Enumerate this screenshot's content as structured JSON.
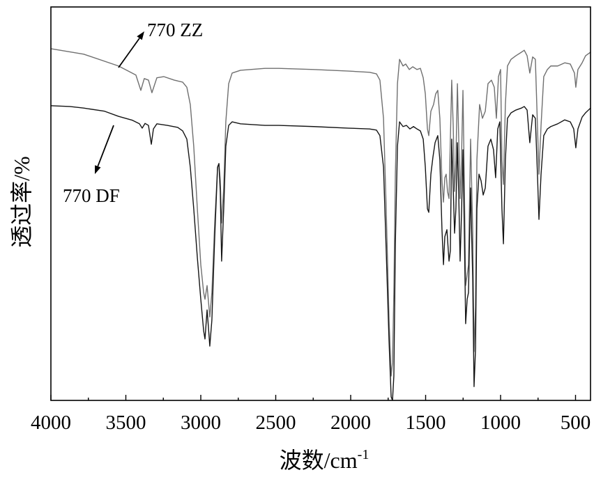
{
  "chart_data": {
    "type": "line",
    "xlabel": "波数/cm",
    "xlabel_superscript": "-1",
    "ylabel": "透过率/%",
    "xlim": [
      4000,
      400
    ],
    "x_reversed": true,
    "ylim": [
      0,
      100
    ],
    "xticks": [
      4000,
      3500,
      3000,
      2500,
      2000,
      1500,
      1000,
      500
    ],
    "xtick_labels": [
      "4000",
      "3500",
      "3000",
      "2500",
      "2000",
      "1500",
      "1000",
      "500"
    ],
    "yticks": [],
    "grid": false,
    "legend": "none",
    "series": [
      {
        "name": "770 ZZ",
        "color": "#6f6f6f",
        "points": [
          [
            4000,
            89.4
          ],
          [
            3781,
            88.0
          ],
          [
            3549,
            85.0
          ],
          [
            3433,
            82.7
          ],
          [
            3400,
            78.8
          ],
          [
            3377,
            81.8
          ],
          [
            3349,
            81.4
          ],
          [
            3326,
            78.2
          ],
          [
            3293,
            82.0
          ],
          [
            3247,
            82.3
          ],
          [
            3177,
            81.4
          ],
          [
            3121,
            80.9
          ],
          [
            3093,
            79.6
          ],
          [
            3070,
            75.2
          ],
          [
            3047,
            64.6
          ],
          [
            3023,
            48.7
          ],
          [
            3000,
            34.5
          ],
          [
            2981,
            27.4
          ],
          [
            2972,
            25.7
          ],
          [
            2958,
            29.2
          ],
          [
            2940,
            21.2
          ],
          [
            2926,
            27.4
          ],
          [
            2907,
            45.1
          ],
          [
            2888,
            59.3
          ],
          [
            2879,
            60.2
          ],
          [
            2870,
            55.8
          ],
          [
            2861,
            45.1
          ],
          [
            2847,
            54.0
          ],
          [
            2833,
            70.8
          ],
          [
            2814,
            80.5
          ],
          [
            2791,
            83.2
          ],
          [
            2735,
            83.9
          ],
          [
            2572,
            84.4
          ],
          [
            2479,
            84.4
          ],
          [
            2247,
            84.1
          ],
          [
            2014,
            83.7
          ],
          [
            1874,
            83.4
          ],
          [
            1828,
            83.0
          ],
          [
            1805,
            81.4
          ],
          [
            1781,
            71.7
          ],
          [
            1763,
            48.7
          ],
          [
            1744,
            20.4
          ],
          [
            1730,
            6.2
          ],
          [
            1721,
            9.7
          ],
          [
            1712,
            27.4
          ],
          [
            1702,
            57.5
          ],
          [
            1688,
            80.5
          ],
          [
            1674,
            86.7
          ],
          [
            1651,
            85.0
          ],
          [
            1633,
            85.5
          ],
          [
            1609,
            84.1
          ],
          [
            1586,
            84.8
          ],
          [
            1558,
            84.1
          ],
          [
            1535,
            84.4
          ],
          [
            1516,
            82.0
          ],
          [
            1502,
            77.9
          ],
          [
            1488,
            69.0
          ],
          [
            1479,
            67.3
          ],
          [
            1465,
            73.5
          ],
          [
            1447,
            75.2
          ],
          [
            1433,
            77.9
          ],
          [
            1419,
            78.8
          ],
          [
            1405,
            71.7
          ],
          [
            1391,
            55.8
          ],
          [
            1381,
            50.4
          ],
          [
            1372,
            56.6
          ],
          [
            1363,
            57.5
          ],
          [
            1354,
            53.1
          ],
          [
            1344,
            51.3
          ],
          [
            1335,
            66.4
          ],
          [
            1326,
            81.4
          ],
          [
            1316,
            69.9
          ],
          [
            1307,
            53.1
          ],
          [
            1298,
            61.1
          ],
          [
            1288,
            80.5
          ],
          [
            1279,
            66.4
          ],
          [
            1270,
            51.3
          ],
          [
            1261,
            61.1
          ],
          [
            1251,
            78.8
          ],
          [
            1242,
            55.8
          ],
          [
            1233,
            29.2
          ],
          [
            1223,
            31.9
          ],
          [
            1214,
            34.5
          ],
          [
            1200,
            66.4
          ],
          [
            1186,
            43.4
          ],
          [
            1177,
            12.4
          ],
          [
            1167,
            23.9
          ],
          [
            1158,
            61.1
          ],
          [
            1140,
            75.2
          ],
          [
            1121,
            71.7
          ],
          [
            1102,
            73.5
          ],
          [
            1084,
            80.5
          ],
          [
            1061,
            81.4
          ],
          [
            1042,
            79.6
          ],
          [
            1028,
            71.7
          ],
          [
            1014,
            82.3
          ],
          [
            1000,
            84.1
          ],
          [
            991,
            61.1
          ],
          [
            981,
            54.9
          ],
          [
            968,
            75.2
          ],
          [
            954,
            85.0
          ],
          [
            930,
            86.7
          ],
          [
            898,
            87.6
          ],
          [
            861,
            88.5
          ],
          [
            842,
            89.0
          ],
          [
            823,
            87.6
          ],
          [
            805,
            83.2
          ],
          [
            786,
            87.3
          ],
          [
            768,
            86.7
          ],
          [
            754,
            69.9
          ],
          [
            744,
            57.5
          ],
          [
            730,
            69.9
          ],
          [
            712,
            82.3
          ],
          [
            688,
            84.1
          ],
          [
            665,
            85.0
          ],
          [
            619,
            85.0
          ],
          [
            572,
            85.8
          ],
          [
            535,
            85.5
          ],
          [
            507,
            83.2
          ],
          [
            498,
            79.6
          ],
          [
            484,
            84.1
          ],
          [
            456,
            85.8
          ],
          [
            433,
            87.6
          ],
          [
            400,
            88.5
          ]
        ]
      },
      {
        "name": "770 DF",
        "color": "#141414",
        "points": [
          [
            4000,
            74.9
          ],
          [
            3874,
            74.7
          ],
          [
            3781,
            74.3
          ],
          [
            3642,
            73.5
          ],
          [
            3549,
            72.2
          ],
          [
            3456,
            71.2
          ],
          [
            3409,
            70.3
          ],
          [
            3391,
            69.2
          ],
          [
            3372,
            70.4
          ],
          [
            3349,
            69.9
          ],
          [
            3330,
            65.1
          ],
          [
            3316,
            69.0
          ],
          [
            3293,
            70.3
          ],
          [
            3223,
            69.9
          ],
          [
            3154,
            69.4
          ],
          [
            3121,
            68.5
          ],
          [
            3093,
            66.4
          ],
          [
            3070,
            59.3
          ],
          [
            3047,
            48.7
          ],
          [
            3023,
            36.3
          ],
          [
            3000,
            25.7
          ],
          [
            2981,
            17.7
          ],
          [
            2972,
            15.6
          ],
          [
            2958,
            23.0
          ],
          [
            2949,
            18.6
          ],
          [
            2940,
            13.8
          ],
          [
            2926,
            20.4
          ],
          [
            2907,
            41.6
          ],
          [
            2888,
            59.3
          ],
          [
            2879,
            60.2
          ],
          [
            2870,
            53.1
          ],
          [
            2861,
            35.4
          ],
          [
            2847,
            48.7
          ],
          [
            2833,
            64.6
          ],
          [
            2814,
            69.9
          ],
          [
            2791,
            70.8
          ],
          [
            2735,
            70.3
          ],
          [
            2572,
            69.9
          ],
          [
            2479,
            69.9
          ],
          [
            2247,
            69.6
          ],
          [
            2014,
            69.2
          ],
          [
            1874,
            69.0
          ],
          [
            1828,
            68.7
          ],
          [
            1805,
            67.3
          ],
          [
            1781,
            59.3
          ],
          [
            1763,
            38.1
          ],
          [
            1744,
            15.0
          ],
          [
            1730,
            0.9
          ],
          [
            1721,
            0.0
          ],
          [
            1712,
            6.2
          ],
          [
            1702,
            39.8
          ],
          [
            1688,
            64.6
          ],
          [
            1674,
            70.8
          ],
          [
            1651,
            69.6
          ],
          [
            1628,
            69.9
          ],
          [
            1605,
            69.0
          ],
          [
            1581,
            69.6
          ],
          [
            1558,
            69.0
          ],
          [
            1535,
            68.5
          ],
          [
            1516,
            66.4
          ],
          [
            1502,
            59.3
          ],
          [
            1488,
            48.7
          ],
          [
            1479,
            47.8
          ],
          [
            1465,
            57.5
          ],
          [
            1451,
            61.9
          ],
          [
            1437,
            65.5
          ],
          [
            1419,
            67.3
          ],
          [
            1405,
            61.1
          ],
          [
            1391,
            43.4
          ],
          [
            1381,
            34.5
          ],
          [
            1372,
            41.6
          ],
          [
            1358,
            43.4
          ],
          [
            1344,
            35.4
          ],
          [
            1335,
            38.1
          ],
          [
            1326,
            66.4
          ],
          [
            1316,
            54.0
          ],
          [
            1307,
            42.5
          ],
          [
            1298,
            48.7
          ],
          [
            1288,
            65.5
          ],
          [
            1279,
            52.2
          ],
          [
            1270,
            35.4
          ],
          [
            1261,
            46.9
          ],
          [
            1251,
            63.7
          ],
          [
            1242,
            43.4
          ],
          [
            1233,
            19.5
          ],
          [
            1223,
            25.7
          ],
          [
            1214,
            27.4
          ],
          [
            1200,
            54.0
          ],
          [
            1186,
            31.0
          ],
          [
            1177,
            3.5
          ],
          [
            1167,
            13.3
          ],
          [
            1158,
            48.7
          ],
          [
            1144,
            57.5
          ],
          [
            1130,
            55.8
          ],
          [
            1116,
            52.2
          ],
          [
            1102,
            54.0
          ],
          [
            1084,
            64.6
          ],
          [
            1065,
            66.4
          ],
          [
            1047,
            63.7
          ],
          [
            1033,
            56.6
          ],
          [
            1019,
            69.0
          ],
          [
            1005,
            70.8
          ],
          [
            991,
            48.7
          ],
          [
            981,
            39.8
          ],
          [
            968,
            61.1
          ],
          [
            954,
            71.7
          ],
          [
            930,
            73.1
          ],
          [
            898,
            73.8
          ],
          [
            861,
            74.3
          ],
          [
            842,
            74.7
          ],
          [
            823,
            73.8
          ],
          [
            805,
            65.5
          ],
          [
            786,
            72.6
          ],
          [
            768,
            71.7
          ],
          [
            754,
            57.5
          ],
          [
            744,
            46.0
          ],
          [
            730,
            57.5
          ],
          [
            712,
            67.3
          ],
          [
            688,
            69.0
          ],
          [
            665,
            69.6
          ],
          [
            619,
            70.3
          ],
          [
            572,
            71.3
          ],
          [
            535,
            70.8
          ],
          [
            512,
            69.0
          ],
          [
            498,
            64.2
          ],
          [
            484,
            69.0
          ],
          [
            456,
            72.0
          ],
          [
            433,
            73.1
          ],
          [
            400,
            74.3
          ]
        ]
      }
    ]
  }
}
